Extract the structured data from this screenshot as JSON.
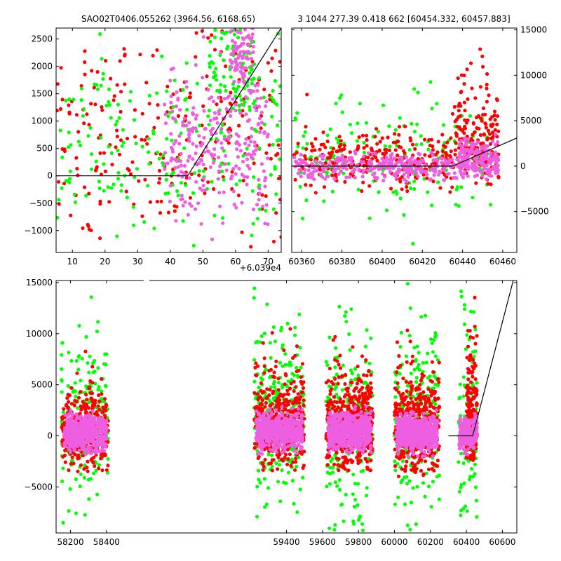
{
  "colors": {
    "green": "#00ff00",
    "red": "#ff0000",
    "pink": "#ee5ee0",
    "line": "#000000"
  },
  "chart_data": [
    {
      "type": "scatter",
      "title": "SAO02T0406.055262 (3964.56, 6168.65)",
      "xlabel": "",
      "ylabel": "",
      "xlim": [
        5,
        74
      ],
      "ylim": [
        -1400,
        2700
      ],
      "x_offset_label": "+6.039e4",
      "xticks": [
        "10",
        "20",
        "30",
        "40",
        "50",
        "60",
        "70"
      ],
      "yticks": [
        "−1000",
        "−500",
        "0",
        "500",
        "1000",
        "1500",
        "2000",
        "2500"
      ],
      "model_line": {
        "x": [
          5,
          45.3,
          74
        ],
        "y": [
          0,
          0,
          2700
        ]
      },
      "clusters": [
        {
          "color": "red",
          "n": 240,
          "x": [
            5,
            74
          ],
          "y": [
            -1350,
            2700
          ],
          "sd": 1050,
          "mean": 800
        },
        {
          "color": "green",
          "n": 200,
          "x": [
            5,
            74
          ],
          "y": [
            -1350,
            2700
          ],
          "sd": 900,
          "mean": 500
        },
        {
          "color": "pink",
          "n": 260,
          "x": [
            38,
            70
          ],
          "y": [
            -1350,
            2700
          ],
          "sd": 700,
          "mean": 600
        },
        {
          "color": "green",
          "n": 80,
          "x": [
            52,
            66
          ],
          "y": [
            1200,
            2700
          ],
          "sd": 700,
          "mean": 2100
        },
        {
          "color": "pink",
          "n": 80,
          "x": [
            58,
            66
          ],
          "y": [
            1400,
            2700
          ],
          "sd": 500,
          "mean": 2300
        }
      ]
    },
    {
      "type": "scatter",
      "title": "3 1044 277.39 0.418 662 [60454.332, 60457.883]",
      "xlabel": "",
      "ylabel": "",
      "xlim": [
        60355,
        60467
      ],
      "ylim": [
        -9500,
        15200
      ],
      "xticks": [
        "60360",
        "60380",
        "60400",
        "60420",
        "60440",
        "60460"
      ],
      "yticks": [
        "−5000",
        "0",
        "5000",
        "10000",
        "15000"
      ],
      "model_line": {
        "x": [
          60355,
          60435,
          60467
        ],
        "y": [
          0,
          0,
          3100
        ]
      },
      "clusters": [
        {
          "color": "green",
          "n": 170,
          "x": [
            60356,
            60458
          ],
          "y": [
            -9000,
            15000
          ],
          "sd": 3200,
          "mean": 800
        },
        {
          "color": "red",
          "n": 320,
          "x": [
            60356,
            60458
          ],
          "y": [
            -3000,
            12000
          ],
          "sd": 1600,
          "mean": 800
        },
        {
          "color": "pink",
          "n": 380,
          "x": [
            60356,
            60458
          ],
          "y": [
            -4000,
            6000
          ],
          "sd": 700,
          "mean": 0
        },
        {
          "color": "red",
          "n": 120,
          "x": [
            60436,
            60458
          ],
          "y": [
            1000,
            13000
          ],
          "sd": 2500,
          "mean": 4000
        },
        {
          "color": "pink",
          "n": 120,
          "x": [
            60438,
            60458
          ],
          "y": [
            -1500,
            3500
          ],
          "sd": 900,
          "mean": 1200
        }
      ]
    },
    {
      "type": "scatter",
      "title": "",
      "xlabel": "",
      "ylabel": "",
      "xlim": [
        58120,
        60680
      ],
      "ylim": [
        -9500,
        15200
      ],
      "xticks": [
        "58200",
        "58400",
        "59400",
        "59600",
        "59800",
        "60000",
        "60200",
        "60400",
        "60600"
      ],
      "yticks": [
        "−5000",
        "0",
        "5000",
        "10000",
        "15000"
      ],
      "model_line": {
        "x": [
          60300,
          60435,
          60660
        ],
        "y": [
          0,
          0,
          15200
        ]
      },
      "clusters": [
        {
          "color": "green",
          "n": 180,
          "x": [
            58150,
            58410
          ],
          "y": [
            -9500,
            15200
          ],
          "sd": 4200,
          "mean": 1500
        },
        {
          "color": "red",
          "n": 300,
          "x": [
            58150,
            58410
          ],
          "y": [
            -3500,
            9000
          ],
          "sd": 2200,
          "mean": 500
        },
        {
          "color": "pink",
          "n": 500,
          "x": [
            58165,
            58400
          ],
          "y": [
            -1800,
            2600
          ],
          "sd": 900,
          "mean": 300
        },
        {
          "color": "green",
          "n": 260,
          "x": [
            59220,
            59500
          ],
          "y": [
            -9500,
            15200
          ],
          "sd": 4200,
          "mean": 2200
        },
        {
          "color": "red",
          "n": 450,
          "x": [
            59220,
            59500
          ],
          "y": [
            -3500,
            11000
          ],
          "sd": 2500,
          "mean": 1200
        },
        {
          "color": "pink",
          "n": 600,
          "x": [
            59230,
            59490
          ],
          "y": [
            -1800,
            3000
          ],
          "sd": 900,
          "mean": 500
        },
        {
          "color": "green",
          "n": 220,
          "x": [
            59620,
            59880
          ],
          "y": [
            -9500,
            15200
          ],
          "sd": 4300,
          "mean": 1200
        },
        {
          "color": "red",
          "n": 450,
          "x": [
            59620,
            59880
          ],
          "y": [
            -3500,
            11000
          ],
          "sd": 2500,
          "mean": 1100
        },
        {
          "color": "pink",
          "n": 600,
          "x": [
            59630,
            59870
          ],
          "y": [
            -1800,
            3000
          ],
          "sd": 900,
          "mean": 400
        },
        {
          "color": "green",
          "n": 220,
          "x": [
            60000,
            60250
          ],
          "y": [
            -9500,
            15200
          ],
          "sd": 4200,
          "mean": 2000
        },
        {
          "color": "red",
          "n": 420,
          "x": [
            60000,
            60250
          ],
          "y": [
            -4000,
            11000
          ],
          "sd": 2500,
          "mean": 900
        },
        {
          "color": "pink",
          "n": 600,
          "x": [
            60010,
            60240
          ],
          "y": [
            -2000,
            2600
          ],
          "sd": 900,
          "mean": 200
        },
        {
          "color": "green",
          "n": 90,
          "x": [
            60355,
            60460
          ],
          "y": [
            -9500,
            15200
          ],
          "sd": 4800,
          "mean": 1000
        },
        {
          "color": "red",
          "n": 170,
          "x": [
            60400,
            60460
          ],
          "y": [
            -2500,
            14000
          ],
          "sd": 3000,
          "mean": 1800
        },
        {
          "color": "pink",
          "n": 200,
          "x": [
            60360,
            60460
          ],
          "y": [
            -2000,
            2800
          ],
          "sd": 900,
          "mean": 200
        }
      ]
    }
  ]
}
